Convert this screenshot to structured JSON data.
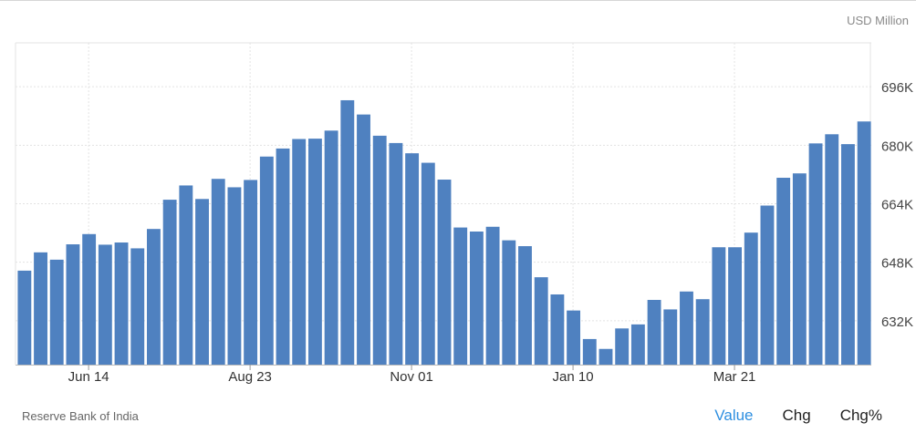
{
  "unit_label": "USD Million",
  "source": "Reserve Bank of India",
  "tabs": [
    {
      "label": "Value",
      "active": true
    },
    {
      "label": "Chg",
      "active": false
    },
    {
      "label": "Chg%",
      "active": false
    }
  ],
  "colors": {
    "bar": "#4f81c0",
    "grid": "#e3e3e3",
    "axis": "#666666",
    "active_tab": "#2e8fe0"
  },
  "chart_data": {
    "type": "bar",
    "title": "",
    "xlabel": "",
    "ylabel": "",
    "unit": "USD Million",
    "grid": true,
    "y_axis_side": "right",
    "ylim": [
      620000,
      708000
    ],
    "yticks": [
      632000,
      648000,
      664000,
      680000,
      696000
    ],
    "ytick_labels": [
      "632K",
      "648K",
      "664K",
      "680K",
      "696K"
    ],
    "xtick_labels": [
      {
        "index": 5,
        "label": "Jun 14"
      },
      {
        "index": 15,
        "label": "Aug 23"
      },
      {
        "index": 25,
        "label": "Nov 01"
      },
      {
        "index": 35,
        "label": "Jan 10"
      },
      {
        "index": 45,
        "label": "Mar 21"
      }
    ],
    "values": [
      645700,
      650700,
      648700,
      652900,
      655700,
      652800,
      653400,
      651800,
      657100,
      665100,
      669000,
      665300,
      670800,
      668500,
      670500,
      676900,
      679100,
      681700,
      681800,
      684000,
      692300,
      688400,
      682600,
      680600,
      677800,
      675200,
      670600,
      657500,
      656400,
      657700,
      654000,
      652400,
      643900,
      639200,
      634800,
      627000,
      624300,
      629900,
      631000,
      637700,
      635100,
      640000,
      637900,
      652100,
      652100,
      656100,
      663500,
      671100,
      672300,
      680500,
      683000,
      680300,
      686500
    ]
  }
}
